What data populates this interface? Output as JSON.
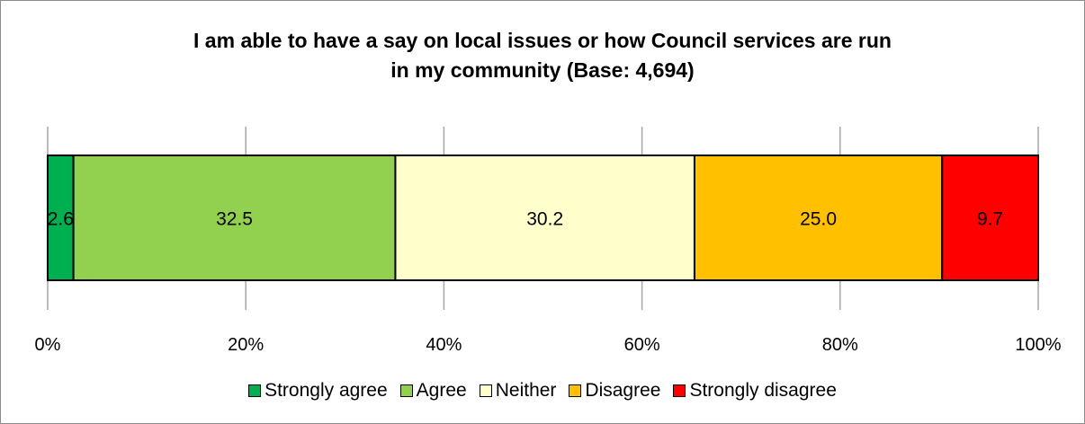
{
  "chart_data": {
    "type": "bar",
    "orientation": "horizontal",
    "stacked": true,
    "title_lines": [
      "I am able to have a say on local issues or how Council services are run",
      "in my community (Base: 4,694)"
    ],
    "xlabel": "",
    "ylabel": "",
    "xlim": [
      0,
      100
    ],
    "x_ticks": [
      0,
      20,
      40,
      60,
      80,
      100
    ],
    "x_tick_labels": [
      "0%",
      "20%",
      "40%",
      "60%",
      "80%",
      "100%"
    ],
    "grid": true,
    "legend_position": "bottom",
    "series": [
      {
        "name": "Strongly agree",
        "value": 2.6,
        "label": "2.6",
        "color": "#00b050"
      },
      {
        "name": "Agree",
        "value": 32.5,
        "label": "32.5",
        "color": "#92d050"
      },
      {
        "name": "Neither",
        "value": 30.2,
        "label": "30.2",
        "color": "#ffffcc"
      },
      {
        "name": "Disagree",
        "value": 25.0,
        "label": "25.0",
        "color": "#ffc000"
      },
      {
        "name": "Strongly disagree",
        "value": 9.7,
        "label": "9.7",
        "color": "#ff0000"
      }
    ]
  }
}
